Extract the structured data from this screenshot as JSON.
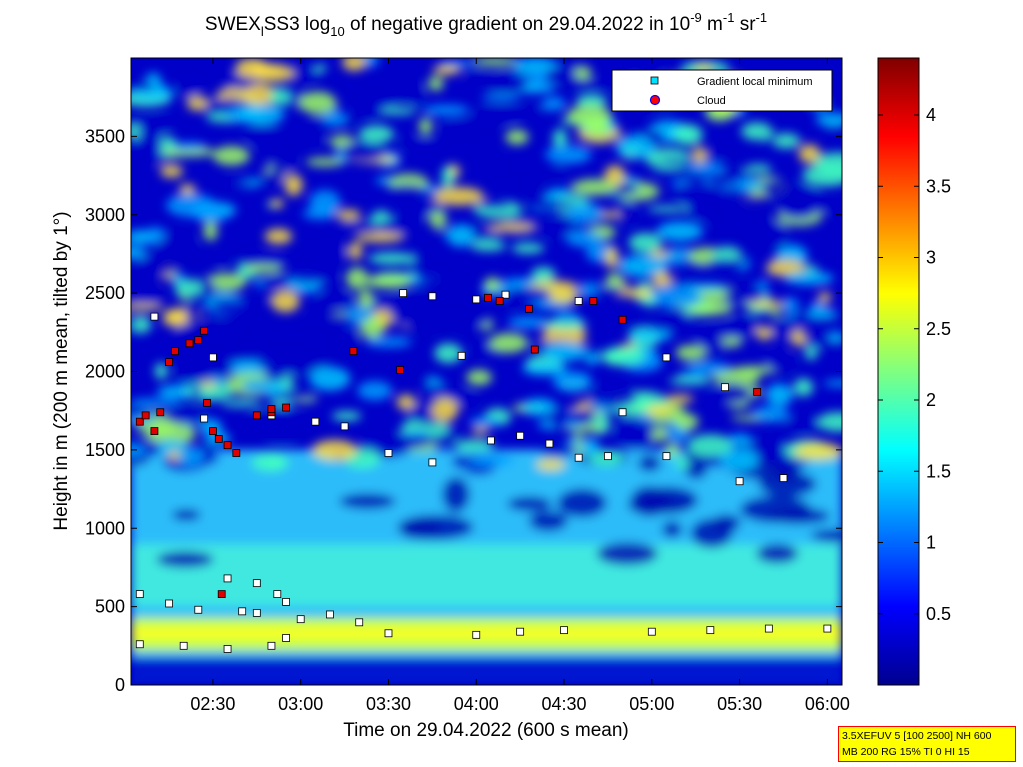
{
  "chart_data": {
    "type": "heatmap",
    "title": {
      "pre": "SWEX",
      "sub1": "l",
      "mid": "SS3 log",
      "sub2": "10",
      "mid2": " of negative gradient on 29.04.2022 in 10",
      "sup1": "-9",
      "mid3": " m",
      "sup2": "-1",
      "mid4": " sr",
      "sup3": "-1"
    },
    "xlabel": "Time on 29.04.2022 (600 s mean)",
    "ylabel": "Height in m (200 m mean, tilted by 1°)",
    "xlim": [
      "02:02",
      "06:05"
    ],
    "ylim": [
      0,
      4000
    ],
    "x_ticks": [
      "02:30",
      "03:00",
      "03:30",
      "04:00",
      "04:30",
      "05:00",
      "05:30",
      "06:00"
    ],
    "y_ticks": [
      0,
      500,
      1000,
      1500,
      2000,
      2500,
      3000,
      3500
    ],
    "colorbar": {
      "min": 0,
      "max": 4.4,
      "ticks": [
        0.5,
        1,
        1.5,
        2,
        2.5,
        3,
        3.5,
        4
      ],
      "colormap": "jet"
    },
    "legend": {
      "placement": "top-right",
      "entries": [
        {
          "label": "Gradient local minimum",
          "marker": "square",
          "color": "#00e0ff"
        },
        {
          "label": "Cloud",
          "marker": "circle",
          "color": "#ff0000"
        }
      ]
    },
    "series": [
      {
        "name": "Gradient local minimum",
        "points": [
          [
            "02:05",
            580
          ],
          [
            "02:15",
            520
          ],
          [
            "02:25",
            480
          ],
          [
            "02:40",
            470
          ],
          [
            "02:45",
            460
          ],
          [
            "02:05",
            260
          ],
          [
            "02:20",
            250
          ],
          [
            "02:35",
            230
          ],
          [
            "02:50",
            250
          ],
          [
            "02:55",
            300
          ],
          [
            "03:00",
            420
          ],
          [
            "03:10",
            450
          ],
          [
            "03:20",
            400
          ],
          [
            "03:30",
            330
          ],
          [
            "04:00",
            320
          ],
          [
            "04:15",
            340
          ],
          [
            "04:30",
            350
          ],
          [
            "05:00",
            340
          ],
          [
            "05:20",
            350
          ],
          [
            "05:40",
            360
          ],
          [
            "06:00",
            360
          ],
          [
            "02:35",
            680
          ],
          [
            "02:45",
            650
          ],
          [
            "02:52",
            580
          ],
          [
            "02:55",
            530
          ],
          [
            "02:50",
            1720
          ],
          [
            "03:05",
            1680
          ],
          [
            "03:15",
            1650
          ],
          [
            "03:30",
            1480
          ],
          [
            "03:45",
            1420
          ],
          [
            "04:05",
            1560
          ],
          [
            "04:15",
            1590
          ],
          [
            "04:25",
            1540
          ],
          [
            "04:35",
            1450
          ],
          [
            "04:45",
            1460
          ],
          [
            "05:05",
            1460
          ],
          [
            "05:30",
            1300
          ],
          [
            "05:45",
            1320
          ],
          [
            "03:45",
            2480
          ],
          [
            "04:00",
            2460
          ],
          [
            "04:10",
            2490
          ],
          [
            "04:35",
            2450
          ],
          [
            "03:55",
            2100
          ],
          [
            "04:50",
            1740
          ],
          [
            "05:25",
            1900
          ],
          [
            "02:10",
            2350
          ],
          [
            "02:30",
            2090
          ],
          [
            "05:05",
            2090
          ],
          [
            "02:27",
            1700
          ],
          [
            "03:35",
            2500
          ]
        ]
      },
      {
        "name": "Cloud",
        "points": [
          [
            "02:05",
            1680
          ],
          [
            "02:07",
            1720
          ],
          [
            "02:10",
            1620
          ],
          [
            "02:12",
            1740
          ],
          [
            "02:15",
            2060
          ],
          [
            "02:17",
            2130
          ],
          [
            "02:22",
            2180
          ],
          [
            "02:25",
            2200
          ],
          [
            "02:27",
            2260
          ],
          [
            "02:28",
            1800
          ],
          [
            "02:30",
            1620
          ],
          [
            "02:32",
            1570
          ],
          [
            "02:35",
            1530
          ],
          [
            "02:38",
            1480
          ],
          [
            "02:45",
            1720
          ],
          [
            "02:50",
            1740
          ],
          [
            "02:55",
            1770
          ],
          [
            "02:50",
            1760
          ],
          [
            "03:18",
            2130
          ],
          [
            "03:34",
            2010
          ],
          [
            "04:04",
            2470
          ],
          [
            "04:08",
            2450
          ],
          [
            "04:18",
            2400
          ],
          [
            "04:20",
            2140
          ],
          [
            "04:40",
            2450
          ],
          [
            "04:50",
            2330
          ],
          [
            "05:36",
            1870
          ],
          [
            "02:33",
            580
          ]
        ]
      }
    ]
  },
  "infobox": {
    "line1": "3.5XEFUV 5 [100 2500] NH 600",
    "line2": "MB 200 RG 15% TI 0 HI 15"
  }
}
